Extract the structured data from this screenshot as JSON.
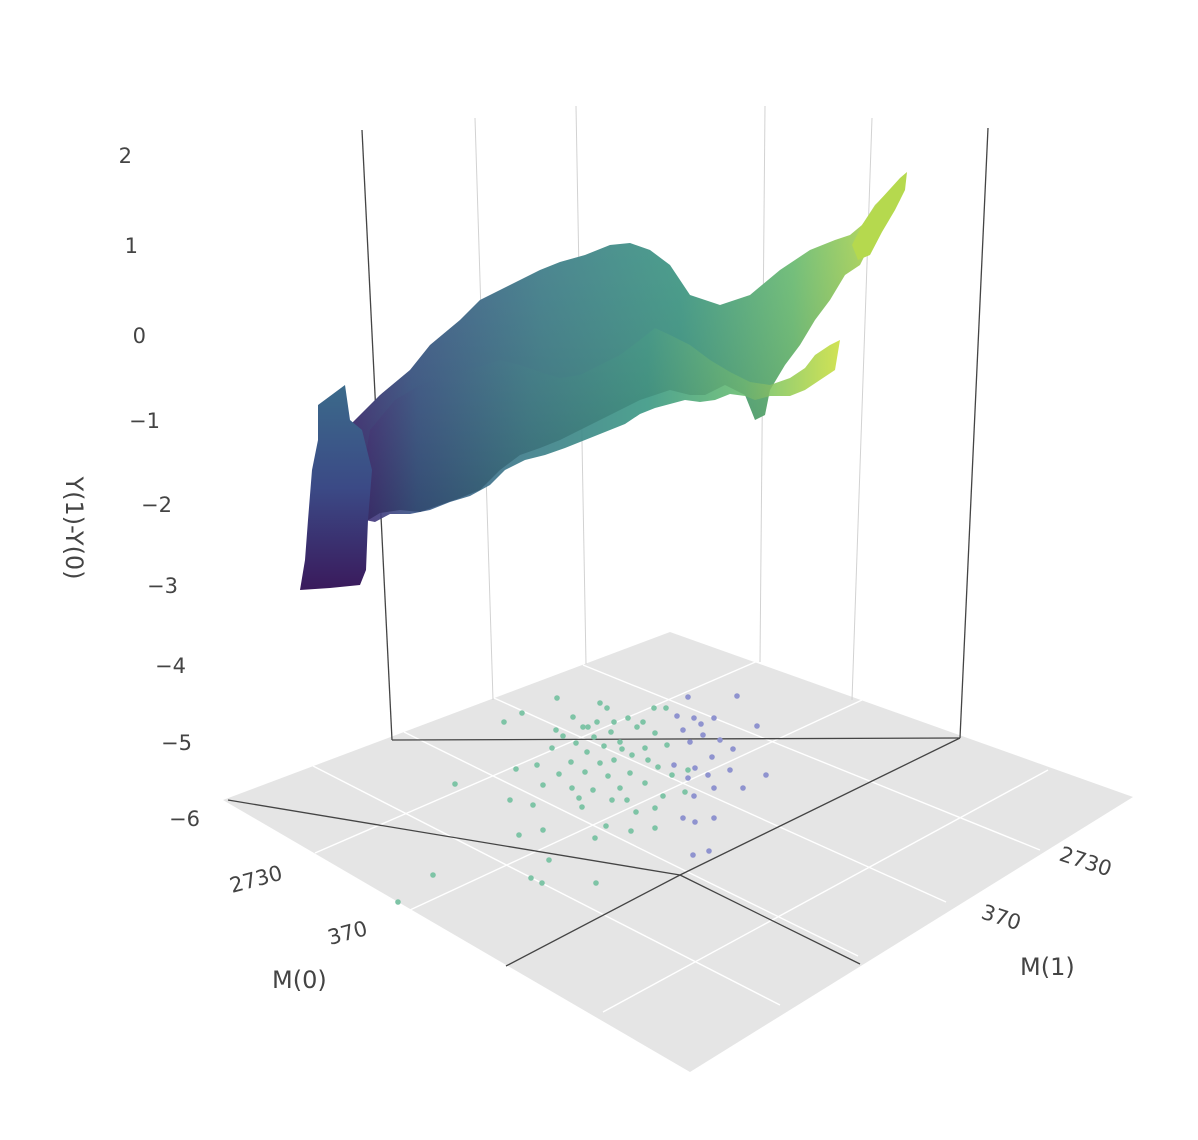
{
  "chart_data": {
    "type": "surface3d",
    "title": "",
    "x_axis": {
      "label": "M(0)",
      "ticks": [
        "2730",
        "370"
      ]
    },
    "y_axis": {
      "label": "M(1)",
      "ticks": [
        "2730",
        "370"
      ]
    },
    "z_axis": {
      "label": "Y(1)-Y(0)",
      "ticks": [
        "2",
        "1",
        "0",
        "−1",
        "−2",
        "−3",
        "−4",
        "−5",
        "−6"
      ],
      "range": [
        -6,
        2
      ]
    },
    "colorscale": "viridis",
    "surface_range": [
      -3,
      2
    ],
    "floor_color": "#e5e5e5",
    "scatter_series": [
      {
        "color": "#7ec4a6"
      },
      {
        "color": "#8f93cf"
      }
    ]
  }
}
